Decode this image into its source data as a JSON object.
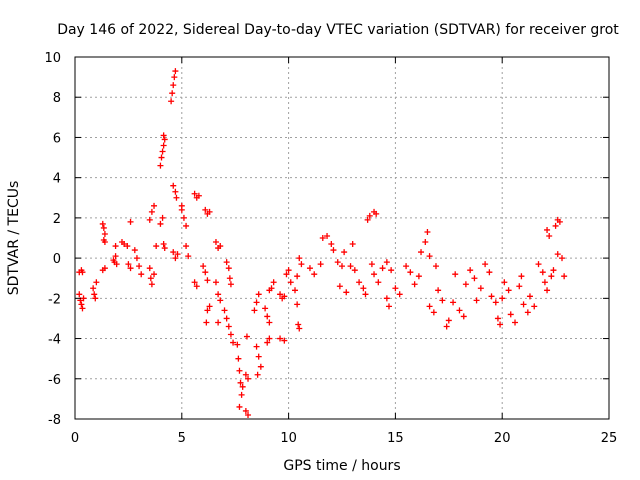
{
  "colors": {
    "series": "#ff0000",
    "grid": "#a0a0a0",
    "axis": "#000000",
    "background": "#ffffff"
  },
  "chart_data": {
    "type": "scatter",
    "title": "Day 146 of 2022, Sidereal Day-to-day VTEC variation (SDTVAR) for receiver grot",
    "xlabel": "GPS time / hours",
    "ylabel": "SDTVAR / TECUs",
    "xlim": [
      0,
      25
    ],
    "ylim": [
      -8,
      10
    ],
    "xticks": [
      0,
      5,
      10,
      15,
      20,
      25
    ],
    "xtick_labels": [
      "0",
      "5",
      "10",
      "15",
      "20",
      "25"
    ],
    "yticks": [
      -8,
      -6,
      -4,
      -2,
      0,
      2,
      4,
      6,
      8,
      10
    ],
    "ytick_labels": [
      "-8",
      "-6",
      "-4",
      "-2",
      "0",
      "2",
      "4",
      "6",
      "8",
      "10"
    ],
    "grid": true,
    "marker": "+",
    "series": [
      {
        "name": "SDTVAR",
        "points": [
          [
            0.2,
            -0.7
          ],
          [
            0.3,
            -0.6
          ],
          [
            0.35,
            -0.7
          ],
          [
            0.2,
            -1.8
          ],
          [
            0.25,
            -2.1
          ],
          [
            0.3,
            -2.3
          ],
          [
            0.35,
            -2.5
          ],
          [
            0.4,
            -2.0
          ],
          [
            0.85,
            -1.5
          ],
          [
            0.9,
            -1.8
          ],
          [
            0.95,
            -2.0
          ],
          [
            1.0,
            -1.2
          ],
          [
            1.3,
            1.7
          ],
          [
            1.35,
            1.5
          ],
          [
            1.4,
            1.2
          ],
          [
            1.35,
            0.9
          ],
          [
            1.4,
            0.8
          ],
          [
            1.3,
            -0.6
          ],
          [
            1.4,
            -0.5
          ],
          [
            1.8,
            -0.1
          ],
          [
            1.85,
            -0.2
          ],
          [
            1.9,
            0.1
          ],
          [
            1.95,
            -0.3
          ],
          [
            1.9,
            0.6
          ],
          [
            2.2,
            0.8
          ],
          [
            2.3,
            0.7
          ],
          [
            2.45,
            0.6
          ],
          [
            2.5,
            -0.3
          ],
          [
            2.6,
            -0.5
          ],
          [
            2.6,
            1.8
          ],
          [
            2.8,
            0.4
          ],
          [
            2.9,
            0.0
          ],
          [
            3.0,
            -0.4
          ],
          [
            3.1,
            -0.8
          ],
          [
            3.5,
            -0.5
          ],
          [
            3.55,
            -1.0
          ],
          [
            3.6,
            -1.3
          ],
          [
            3.7,
            -0.8
          ],
          [
            3.5,
            1.9
          ],
          [
            3.6,
            2.3
          ],
          [
            3.7,
            2.6
          ],
          [
            3.8,
            0.6
          ],
          [
            4.0,
            4.6
          ],
          [
            4.05,
            5.0
          ],
          [
            4.1,
            5.3
          ],
          [
            4.15,
            5.6
          ],
          [
            4.2,
            5.9
          ],
          [
            4.15,
            6.1
          ],
          [
            4.0,
            1.7
          ],
          [
            4.1,
            2.0
          ],
          [
            4.15,
            0.7
          ],
          [
            4.2,
            0.5
          ],
          [
            4.5,
            7.8
          ],
          [
            4.55,
            8.2
          ],
          [
            4.6,
            8.6
          ],
          [
            4.65,
            9.0
          ],
          [
            4.7,
            9.3
          ],
          [
            4.6,
            3.6
          ],
          [
            4.7,
            3.3
          ],
          [
            4.75,
            3.0
          ],
          [
            4.6,
            0.3
          ],
          [
            4.7,
            0.0
          ],
          [
            4.8,
            0.2
          ],
          [
            5.0,
            2.4
          ],
          [
            5.1,
            2.0
          ],
          [
            5.2,
            1.6
          ],
          [
            5.2,
            0.6
          ],
          [
            5.3,
            0.1
          ],
          [
            5.0,
            2.6
          ],
          [
            5.6,
            3.2
          ],
          [
            5.7,
            3.0
          ],
          [
            5.8,
            3.1
          ],
          [
            5.6,
            -1.2
          ],
          [
            5.7,
            -1.4
          ],
          [
            6.0,
            -0.4
          ],
          [
            6.1,
            -0.7
          ],
          [
            6.2,
            -1.1
          ],
          [
            6.1,
            2.4
          ],
          [
            6.2,
            2.2
          ],
          [
            6.3,
            2.3
          ],
          [
            6.2,
            -2.6
          ],
          [
            6.3,
            -2.4
          ],
          [
            6.15,
            -3.2
          ],
          [
            6.6,
            0.8
          ],
          [
            6.7,
            0.5
          ],
          [
            6.8,
            0.6
          ],
          [
            6.6,
            -1.2
          ],
          [
            6.7,
            -1.8
          ],
          [
            6.8,
            -2.1
          ],
          [
            6.7,
            -3.2
          ],
          [
            7.1,
            -0.2
          ],
          [
            7.2,
            -0.5
          ],
          [
            7.25,
            -1.0
          ],
          [
            7.3,
            -1.3
          ],
          [
            7.0,
            -2.6
          ],
          [
            7.1,
            -3.0
          ],
          [
            7.2,
            -3.4
          ],
          [
            7.3,
            -3.8
          ],
          [
            7.4,
            -4.2
          ],
          [
            7.6,
            -4.3
          ],
          [
            7.65,
            -5.0
          ],
          [
            7.7,
            -5.6
          ],
          [
            7.75,
            -6.2
          ],
          [
            7.8,
            -6.8
          ],
          [
            7.85,
            -6.4
          ],
          [
            7.7,
            -7.4
          ],
          [
            8.0,
            -5.8
          ],
          [
            8.1,
            -6.0
          ],
          [
            8.0,
            -7.6
          ],
          [
            8.1,
            -7.8
          ],
          [
            8.05,
            -3.9
          ],
          [
            8.4,
            -2.6
          ],
          [
            8.5,
            -2.2
          ],
          [
            8.6,
            -1.8
          ],
          [
            8.5,
            -4.4
          ],
          [
            8.6,
            -4.9
          ],
          [
            8.7,
            -5.4
          ],
          [
            8.55,
            -5.8
          ],
          [
            8.9,
            -2.5
          ],
          [
            9.0,
            -2.9
          ],
          [
            9.1,
            -3.2
          ],
          [
            9.0,
            -4.2
          ],
          [
            9.1,
            -4.0
          ],
          [
            9.1,
            -1.6
          ],
          [
            9.2,
            -1.5
          ],
          [
            9.3,
            -1.2
          ],
          [
            9.6,
            -1.8
          ],
          [
            9.7,
            -2.0
          ],
          [
            9.8,
            -1.9
          ],
          [
            9.6,
            -4.0
          ],
          [
            9.8,
            -4.1
          ],
          [
            9.9,
            -0.8
          ],
          [
            10.0,
            -0.6
          ],
          [
            10.1,
            -1.2
          ],
          [
            10.3,
            -1.6
          ],
          [
            10.4,
            -2.3
          ],
          [
            10.5,
            -3.5
          ],
          [
            10.45,
            -3.3
          ],
          [
            10.5,
            0.0
          ],
          [
            10.6,
            -0.3
          ],
          [
            10.4,
            -0.9
          ],
          [
            11.0,
            -0.5
          ],
          [
            11.2,
            -0.8
          ],
          [
            11.5,
            -0.3
          ],
          [
            11.6,
            1.0
          ],
          [
            11.8,
            1.1
          ],
          [
            12.0,
            0.7
          ],
          [
            12.1,
            0.4
          ],
          [
            12.3,
            -0.2
          ],
          [
            12.5,
            -0.4
          ],
          [
            12.6,
            0.3
          ],
          [
            12.4,
            -1.4
          ],
          [
            12.7,
            -1.7
          ],
          [
            12.9,
            -0.4
          ],
          [
            13.0,
            0.7
          ],
          [
            13.1,
            -0.6
          ],
          [
            13.3,
            -1.2
          ],
          [
            13.5,
            -1.5
          ],
          [
            13.6,
            -1.8
          ],
          [
            13.7,
            1.9
          ],
          [
            13.8,
            2.1
          ],
          [
            14.0,
            2.3
          ],
          [
            14.1,
            2.2
          ],
          [
            13.9,
            -0.3
          ],
          [
            14.0,
            -0.8
          ],
          [
            14.2,
            -1.2
          ],
          [
            14.4,
            -0.5
          ],
          [
            14.6,
            -0.2
          ],
          [
            14.8,
            -0.6
          ],
          [
            14.6,
            -2.0
          ],
          [
            14.7,
            -2.4
          ],
          [
            15.0,
            -1.5
          ],
          [
            15.2,
            -1.8
          ],
          [
            15.5,
            -0.4
          ],
          [
            15.7,
            -0.7
          ],
          [
            15.9,
            -1.3
          ],
          [
            16.1,
            -0.9
          ],
          [
            16.2,
            0.3
          ],
          [
            16.4,
            0.8
          ],
          [
            16.5,
            1.3
          ],
          [
            16.6,
            0.1
          ],
          [
            16.6,
            -2.4
          ],
          [
            16.8,
            -2.7
          ],
          [
            16.9,
            -0.4
          ],
          [
            17.0,
            -1.6
          ],
          [
            17.2,
            -2.1
          ],
          [
            17.4,
            -3.4
          ],
          [
            17.5,
            -3.1
          ],
          [
            17.7,
            -2.2
          ],
          [
            17.8,
            -0.8
          ],
          [
            18.0,
            -2.6
          ],
          [
            18.2,
            -2.9
          ],
          [
            18.3,
            -1.3
          ],
          [
            18.5,
            -0.6
          ],
          [
            18.7,
            -1.0
          ],
          [
            18.8,
            -2.1
          ],
          [
            19.0,
            -1.5
          ],
          [
            19.2,
            -0.3
          ],
          [
            19.4,
            -0.7
          ],
          [
            19.5,
            -1.9
          ],
          [
            19.7,
            -2.2
          ],
          [
            19.8,
            -3.0
          ],
          [
            19.9,
            -3.3
          ],
          [
            20.0,
            -2.0
          ],
          [
            20.1,
            -1.2
          ],
          [
            20.3,
            -1.6
          ],
          [
            20.4,
            -2.8
          ],
          [
            20.6,
            -3.2
          ],
          [
            20.8,
            -1.4
          ],
          [
            20.9,
            -0.9
          ],
          [
            21.0,
            -2.3
          ],
          [
            21.2,
            -2.7
          ],
          [
            21.3,
            -1.9
          ],
          [
            21.5,
            -2.4
          ],
          [
            21.7,
            -0.3
          ],
          [
            21.9,
            -0.7
          ],
          [
            22.1,
            1.4
          ],
          [
            22.2,
            1.1
          ],
          [
            22.0,
            -1.2
          ],
          [
            22.1,
            -1.6
          ],
          [
            22.3,
            -0.9
          ],
          [
            22.4,
            -0.6
          ],
          [
            22.5,
            1.6
          ],
          [
            22.6,
            1.9
          ],
          [
            22.7,
            1.8
          ],
          [
            22.6,
            0.2
          ],
          [
            22.8,
            0.0
          ],
          [
            22.9,
            -0.9
          ]
        ]
      }
    ]
  }
}
